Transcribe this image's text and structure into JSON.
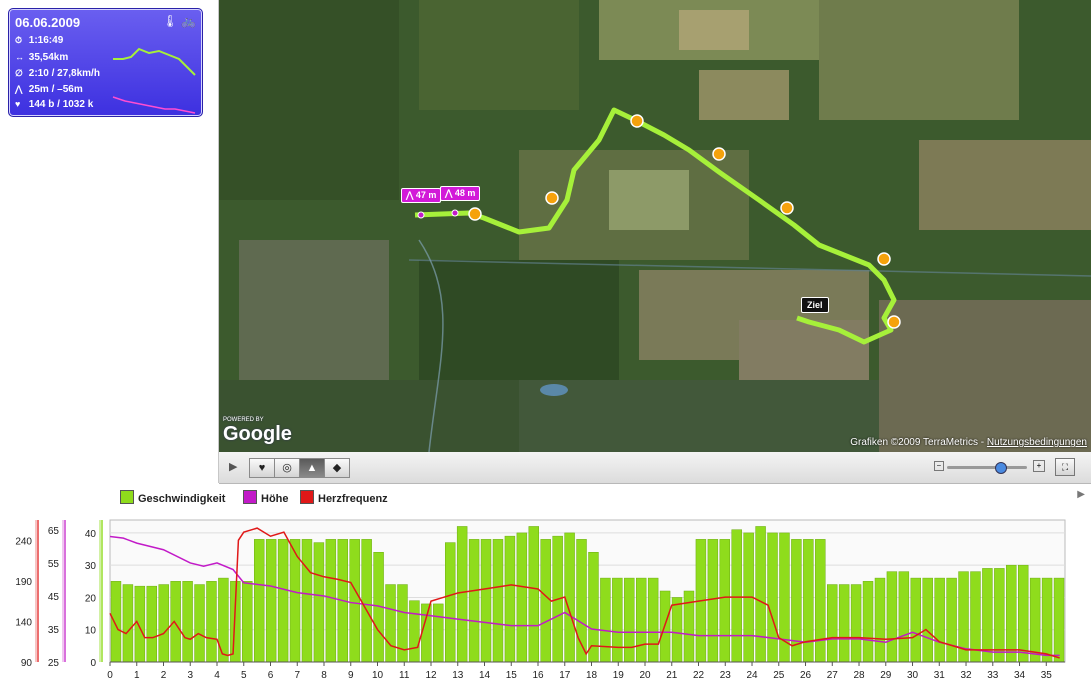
{
  "workout": {
    "date": "06.06.2009",
    "duration": "1:16:49",
    "distance": "35,54km",
    "avg_speed": "2:10 / 27,8km/h",
    "elevation": "25m / –56m",
    "heart": "144 b / 1032 k",
    "icons": [
      "stopwatch-icon",
      "distance-icon",
      "speed-icon",
      "elevation-icon",
      "heart-icon",
      "thermometer-icon",
      "bike-icon"
    ]
  },
  "map": {
    "label_start_a": "47 m",
    "label_start_b": "48 m",
    "label_end": "Ziel",
    "attribution": "Grafiken ©2009 TerraMetrics - ",
    "terms_link": "Nutzungsbedingungen",
    "logo": "Google",
    "logo_small": "POWERED BY"
  },
  "colors": {
    "speed": "#8fdc1c",
    "altitude": "#c21ac8",
    "heart": "#e01818",
    "card": "#4b3ff0",
    "route": "#a6f03a"
  },
  "legend": {
    "speed": "Geschwindigkeit",
    "altitude": "Höhe",
    "heart": "Herzfrequenz"
  },
  "chart_data": {
    "type": "bar",
    "title": "",
    "xlabel": "",
    "ylabel": "",
    "x_ticks": [
      "0",
      "1",
      "2",
      "3",
      "4",
      "5",
      "6",
      "7",
      "8",
      "9",
      "10",
      "11",
      "12",
      "13",
      "14",
      "15",
      "16",
      "17",
      "18",
      "19",
      "20",
      "21",
      "22",
      "23",
      "24",
      "25",
      "26",
      "27",
      "28",
      "29",
      "30",
      "31",
      "32",
      "33",
      "34",
      "35"
    ],
    "xlim": [
      0,
      35.7
    ],
    "axes": {
      "speed": {
        "ticks": [
          "0",
          "10",
          "20",
          "30",
          "40"
        ],
        "ylim": [
          0,
          44
        ]
      },
      "altitude": {
        "ticks": [
          "25",
          "35",
          "45",
          "55",
          "65"
        ],
        "ylim": [
          25,
          68
        ]
      },
      "heart": {
        "ticks": [
          "90",
          "140",
          "190",
          "240"
        ],
        "ylim": [
          90,
          265
        ]
      }
    },
    "series": [
      {
        "name": "Geschwindigkeit",
        "type": "bar",
        "values": [
          25,
          24,
          23.5,
          23.5,
          24,
          25,
          25,
          24,
          25,
          26,
          25,
          25,
          38,
          38,
          38,
          38,
          38,
          37,
          38,
          38,
          38,
          38,
          34,
          24,
          24,
          19,
          18,
          18,
          37,
          42,
          38,
          38,
          38,
          39,
          40,
          42,
          38,
          39,
          40,
          38,
          34,
          26,
          26,
          26,
          26,
          26,
          22,
          20,
          22,
          38,
          38,
          38,
          41,
          40,
          42,
          40,
          40,
          38,
          38,
          38,
          24,
          24,
          24,
          25,
          26,
          28,
          28,
          26,
          26,
          26,
          26,
          28,
          28,
          29,
          29,
          30,
          30,
          26,
          26,
          26
        ]
      },
      {
        "name": "Höhe",
        "type": "line",
        "x": [
          0,
          0.5,
          1,
          2,
          3,
          3.5,
          4,
          4.6,
          5,
          6,
          7,
          8,
          9,
          10,
          11,
          12,
          13,
          14,
          15,
          16,
          17,
          18,
          19,
          20,
          21,
          22,
          23,
          24,
          25,
          26,
          27,
          28,
          29,
          30,
          31,
          32,
          33,
          34,
          35,
          35.5
        ],
        "values": [
          63,
          62.5,
          61,
          59,
          55,
          54,
          55,
          53,
          49,
          48,
          46,
          45,
          43,
          42,
          40,
          39,
          38,
          37,
          36,
          36,
          40,
          35,
          34,
          34,
          34,
          33,
          33,
          33,
          32,
          31,
          32,
          32,
          31,
          34,
          31,
          29,
          28,
          28,
          27,
          27
        ]
      },
      {
        "name": "Herzfrequenz",
        "type": "line",
        "x": [
          0,
          0.3,
          0.6,
          1,
          1.3,
          1.6,
          2,
          2.4,
          2.8,
          3,
          3.3,
          3.6,
          4,
          4.2,
          4.4,
          4.6,
          4.8,
          5,
          5.5,
          6,
          6.5,
          7,
          7.5,
          8,
          8.5,
          9,
          10,
          10.5,
          11,
          11.5,
          12,
          12.5,
          13,
          14,
          15,
          16,
          16.5,
          17,
          17.5,
          17.8,
          18,
          19,
          19.5,
          20,
          20.5,
          21,
          22,
          23,
          24,
          24.6,
          25,
          25.5,
          26,
          27,
          28,
          29,
          30,
          30.5,
          31,
          31.5,
          32,
          33,
          34,
          35,
          35.5
        ],
        "values": [
          150,
          130,
          125,
          140,
          120,
          120,
          125,
          140,
          120,
          118,
          125,
          120,
          118,
          100,
          98,
          100,
          240,
          250,
          255,
          245,
          250,
          220,
          200,
          195,
          192,
          188,
          130,
          110,
          105,
          108,
          165,
          170,
          175,
          180,
          185,
          180,
          165,
          170,
          120,
          100,
          110,
          108,
          108,
          112,
          112,
          160,
          165,
          170,
          170,
          160,
          120,
          110,
          115,
          120,
          120,
          118,
          120,
          130,
          115,
          110,
          105,
          105,
          105,
          100,
          95
        ]
      }
    ]
  }
}
